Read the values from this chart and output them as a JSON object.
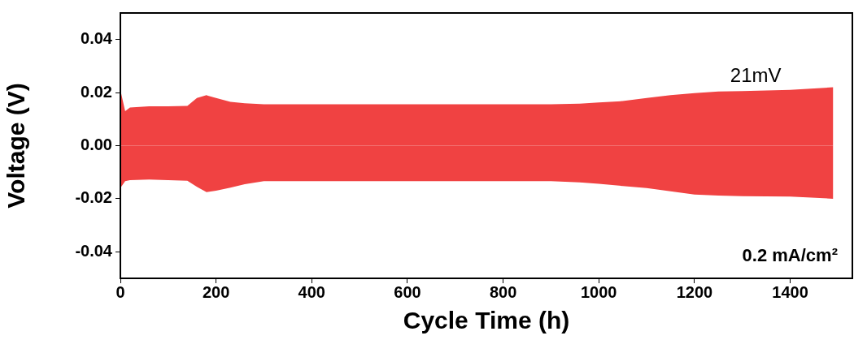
{
  "chart_data": {
    "type": "area",
    "xlabel": "Cycle Time (h)",
    "ylabel": "Voltage (V)",
    "xlim": [
      0,
      1530
    ],
    "xticks": [
      0,
      200,
      400,
      600,
      800,
      1000,
      1200,
      1400
    ],
    "ylim": [
      -0.05,
      0.05
    ],
    "yticks": [
      {
        "value": -0.04,
        "label": "-0.04"
      },
      {
        "value": -0.02,
        "label": "-0.02"
      },
      {
        "value": 0,
        "label": "0.00"
      },
      {
        "value": 0.02,
        "label": "0.02"
      },
      {
        "value": 0.04,
        "label": "0.04"
      }
    ],
    "grid": false,
    "legend": false,
    "series": [
      {
        "color": "#f04242",
        "x": [
          0,
          10,
          20,
          60,
          100,
          140,
          160,
          180,
          200,
          230,
          260,
          300,
          500,
          700,
          900,
          960,
          1000,
          1050,
          1100,
          1150,
          1200,
          1250,
          1300,
          1400,
          1490
        ],
        "values": [
          0.021,
          0.013,
          0.0144,
          0.0148,
          0.0148,
          0.015,
          0.018,
          0.019,
          0.018,
          0.0165,
          0.016,
          0.0156,
          0.0156,
          0.0156,
          0.0156,
          0.0158,
          0.0163,
          0.0168,
          0.018,
          0.019,
          0.0198,
          0.0204,
          0.0206,
          0.021,
          0.022
        ]
      },
      {
        "color": "#f04242",
        "x": [
          0,
          10,
          20,
          60,
          100,
          140,
          160,
          180,
          200,
          230,
          260,
          300,
          500,
          700,
          900,
          960,
          1000,
          1050,
          1100,
          1150,
          1200,
          1250,
          1300,
          1400,
          1490
        ],
        "values": [
          -0.016,
          -0.0134,
          -0.013,
          -0.0128,
          -0.013,
          -0.0132,
          -0.0155,
          -0.0175,
          -0.017,
          -0.0158,
          -0.0145,
          -0.0134,
          -0.0134,
          -0.0134,
          -0.0134,
          -0.0138,
          -0.0144,
          -0.0152,
          -0.016,
          -0.0172,
          -0.0184,
          -0.0188,
          -0.019,
          -0.0192,
          -0.02
        ]
      }
    ],
    "annotations": [
      "21mV",
      "0.2 mA/cm²"
    ]
  }
}
